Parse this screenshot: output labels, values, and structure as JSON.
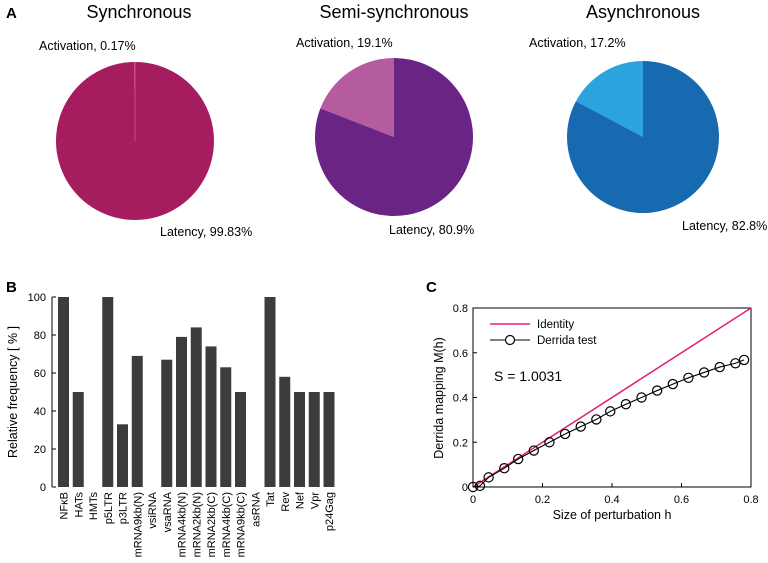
{
  "panel_labels": {
    "a": "A",
    "b": "B",
    "c": "C"
  },
  "chart_data": [
    {
      "type": "pie",
      "title": "Synchronous",
      "slices": [
        {
          "label": "Activation, 0.17%",
          "value": 0.17,
          "color": "#e0407f"
        },
        {
          "label": "Latency, 99.83%",
          "value": 99.83,
          "color": "#a51c5f"
        }
      ]
    },
    {
      "type": "pie",
      "title": "Semi-synchronous",
      "slices": [
        {
          "label": "Activation, 19.1%",
          "value": 19.1,
          "color": "#b45c9f"
        },
        {
          "label": "Latency, 80.9%",
          "value": 80.9,
          "color": "#6a2486"
        }
      ]
    },
    {
      "type": "pie",
      "title": "Asynchronous",
      "slices": [
        {
          "label": "Activation, 17.2%",
          "value": 17.2,
          "color": "#2aa3df"
        },
        {
          "label": "Latency, 82.8%",
          "value": 82.8,
          "color": "#1769b0"
        }
      ]
    },
    {
      "type": "bar",
      "title": "",
      "ylabel": "Relative frequency [ % ]",
      "ylim": [
        0,
        100
      ],
      "yticks": [
        "0",
        "20",
        "40",
        "60",
        "80",
        "100"
      ],
      "color": "#3c3c3c",
      "categories": [
        "NFκB",
        "HATs",
        "HMTs",
        "p5LTR",
        "p3LTR",
        "mRNA9kb(N)",
        "vsiRNA",
        "vsaRNA",
        "mRNA4kb(N)",
        "mRNA2kb(N)",
        "mRNA2kb(C)",
        "mRNA4kb(C)",
        "mRNA9kb(C)",
        "asRNA",
        "Tat",
        "Rev",
        "Nef",
        "Vpr",
        "p24Gag"
      ],
      "values": [
        100,
        50,
        0,
        100,
        33,
        69,
        0,
        67,
        79,
        84,
        74,
        63,
        50,
        0,
        100,
        58,
        50,
        50,
        50
      ]
    },
    {
      "type": "line",
      "xlabel": "Size of perturbation h",
      "ylabel": "Derrida mapping M(h)",
      "xlim": [
        0,
        0.8
      ],
      "ylim": [
        0,
        0.8
      ],
      "xticks": [
        "0",
        "0.2",
        "0.4",
        "0.6",
        "0.8"
      ],
      "yticks": [
        "0",
        "0.2",
        "0.4",
        "0.6",
        "0.8"
      ],
      "annotation": "S = 1.0031",
      "series": [
        {
          "name": "Identity",
          "color": "#e0207a",
          "x": [
            0,
            0.8
          ],
          "y": [
            0,
            0.8
          ]
        },
        {
          "name": "Derrida test",
          "color": "#000000",
          "marker": "circle",
          "x": [
            0,
            0.02,
            0.045,
            0.09,
            0.13,
            0.175,
            0.22,
            0.265,
            0.31,
            0.355,
            0.395,
            0.44,
            0.485,
            0.53,
            0.575,
            0.62,
            0.665,
            0.71,
            0.755,
            0.78
          ],
          "y": [
            0,
            0.005,
            0.043,
            0.084,
            0.125,
            0.163,
            0.2,
            0.237,
            0.27,
            0.302,
            0.338,
            0.37,
            0.4,
            0.431,
            0.46,
            0.488,
            0.512,
            0.536,
            0.553,
            0.568
          ]
        }
      ]
    }
  ]
}
